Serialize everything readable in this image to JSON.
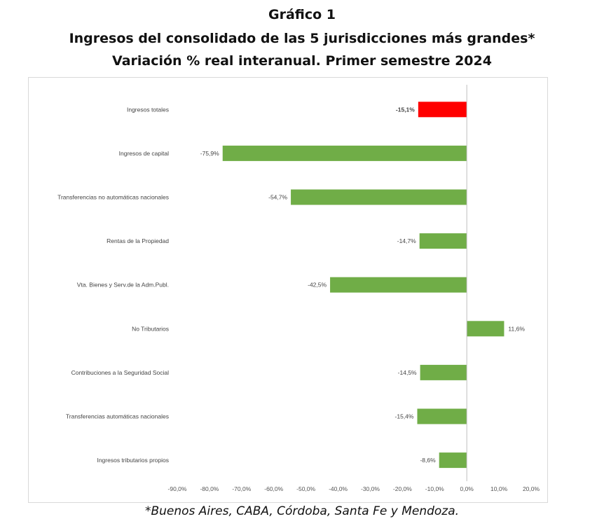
{
  "header": {
    "title1": "Gráfico 1",
    "title2": "Ingresos del consolidado de las 5 jurisdicciones más grandes*",
    "title3": "Variación % real interanual. Primer semestre 2024"
  },
  "footnote": "*Buenos Aires, CABA, Córdoba, Santa Fe y Mendoza.",
  "chart_data": {
    "type": "bar",
    "orientation": "horizontal",
    "categories": [
      "Ingresos totales",
      "Ingresos de capital",
      "Transferencias no automáticas nacionales",
      "Rentas de la Propiedad",
      "Vta. Bienes y Serv.de la Adm.Publ.",
      "No Tributarios",
      "Contribuciones a la Seguridad Social",
      "Transferencias automáticas nacionales",
      "Ingresos tributarios propios"
    ],
    "values": [
      -15.1,
      -75.9,
      -54.7,
      -14.7,
      -42.5,
      11.6,
      -14.5,
      -15.4,
      -8.6
    ],
    "data_labels": [
      "-15,1%",
      "-75,9%",
      "-54,7%",
      "-14,7%",
      "-42,5%",
      "11,6%",
      "-14,5%",
      "-15,4%",
      "-8,6%"
    ],
    "bar_colors": [
      "#ff0000",
      "#70ad47",
      "#70ad47",
      "#70ad47",
      "#70ad47",
      "#70ad47",
      "#70ad47",
      "#70ad47",
      "#70ad47"
    ],
    "xlim": [
      -90,
      20
    ],
    "xticks": [
      -90,
      -80,
      -70,
      -60,
      -50,
      -40,
      -30,
      -20,
      -10,
      0,
      10,
      20
    ],
    "xtick_labels": [
      "-90,0%",
      "-80,0%",
      "-70,0%",
      "-60,0%",
      "-50,0%",
      "-40,0%",
      "-30,0%",
      "-20,0%",
      "-10,0%",
      "0,0%",
      "10,0%",
      "20,0%"
    ],
    "grid": false,
    "legend": "none"
  }
}
